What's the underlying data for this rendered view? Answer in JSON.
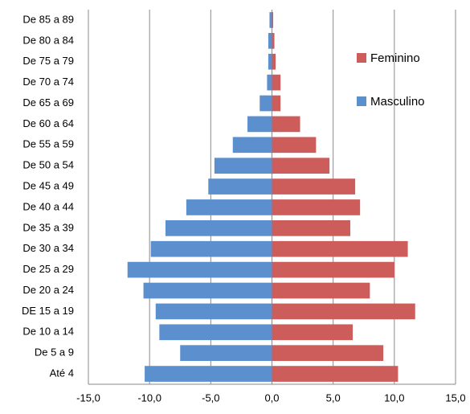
{
  "chart_data": {
    "type": "hbar-pyramid",
    "categories": [
      "De 85 a 89",
      "De 80 a 84",
      "De 75 a 79",
      "De 70 a 74",
      "De 65 a 69",
      "De 60 a 64",
      "De 55 a 59",
      "De 50 a 54",
      "De 45 a 49",
      "De 40 a 44",
      "De 35 a 39",
      "De 30 a 34",
      "De 25 a 29",
      "De 20 a 24",
      "DE 15 a 19",
      "De 10 a 14",
      "De 5 a 9",
      "Até 4"
    ],
    "series": [
      {
        "name": "Feminino",
        "color": "#cd5d5a",
        "values": [
          0.1,
          0.2,
          0.3,
          0.7,
          0.7,
          2.3,
          3.6,
          4.7,
          6.8,
          7.2,
          6.4,
          11.1,
          10.0,
          8.0,
          11.7,
          6.6,
          9.1,
          10.3
        ]
      },
      {
        "name": "Masculino",
        "color": "#5b8fce",
        "values": [
          -0.2,
          -0.3,
          -0.3,
          -0.4,
          -1.0,
          -2.0,
          -3.2,
          -4.7,
          -5.2,
          -7.0,
          -8.7,
          -9.9,
          -11.8,
          -10.5,
          -9.5,
          -9.2,
          -7.5,
          -10.4
        ]
      }
    ],
    "xlim": [
      -15,
      15
    ],
    "xticks": [
      {
        "value": -15,
        "label": "-15,0"
      },
      {
        "value": -10,
        "label": "-10,0"
      },
      {
        "value": -5,
        "label": "-5,0"
      },
      {
        "value": 0,
        "label": "0,0"
      },
      {
        "value": 5,
        "label": "5,0"
      },
      {
        "value": 10,
        "label": "10,0"
      },
      {
        "value": 15,
        "label": "15,0"
      }
    ],
    "grid": true
  }
}
